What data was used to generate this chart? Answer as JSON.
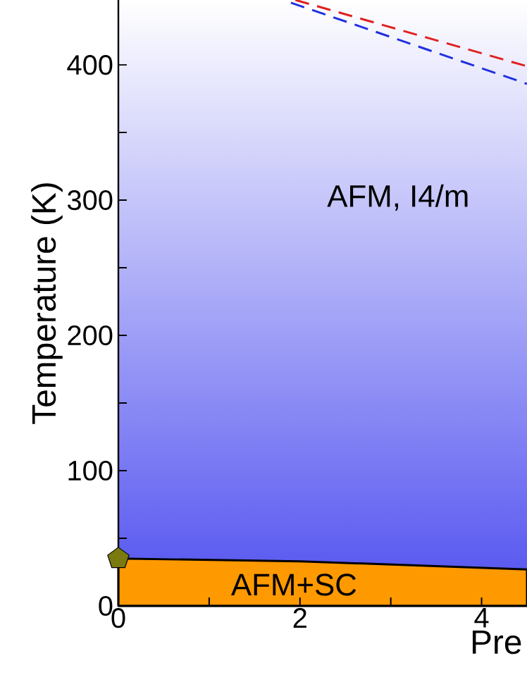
{
  "chart_data": {
    "type": "area",
    "xlabel": "Pre",
    "ylabel": "Temperature (K)",
    "xlim": [
      0,
      4.5
    ],
    "ylim": [
      0,
      448
    ],
    "xticks": [
      0,
      {
        "value": 1,
        "label": null
      },
      2,
      {
        "value": 3,
        "label": null
      },
      4
    ],
    "yticks": [
      0,
      {
        "value": 50,
        "label": null
      },
      100,
      {
        "value": 150,
        "label": null
      },
      200,
      {
        "value": 250,
        "label": null
      },
      300,
      {
        "value": 350,
        "label": null
      },
      400
    ],
    "bands": [
      {
        "axis": "y",
        "from": 0,
        "to": 448,
        "color": "#5050f0"
      }
    ],
    "series": [
      {
        "type": "scatter",
        "color": "#7a7a10",
        "x": [
          0
        ],
        "values": [
          35
        ]
      },
      {
        "color": "#ff9900",
        "x": [
          0,
          2,
          4.5
        ],
        "values": [
          35,
          33,
          27
        ]
      },
      {
        "type": "line",
        "color": "#e02020",
        "line_style": "dashed",
        "x": [
          1.95,
          4.5
        ],
        "values": [
          448,
          399
        ]
      },
      {
        "type": "line",
        "color": "#2030e0",
        "line_style": "dashed",
        "x": [
          1.9,
          4.5
        ],
        "values": [
          446,
          386
        ]
      }
    ],
    "annotations": [
      "AFM, I4/m",
      "AFM+SC"
    ]
  }
}
